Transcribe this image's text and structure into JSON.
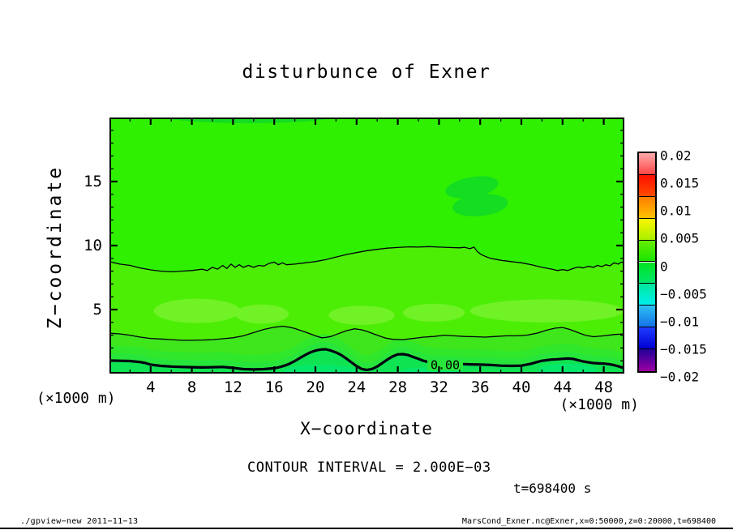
{
  "figure": {
    "title": "disturbunce of Exner",
    "xlabel": "X−coordinate",
    "ylabel": "Z−coordinate",
    "unit_note": "(×1000 m)",
    "contour_note": "CONTOUR INTERVAL = 2.000E−03",
    "time_note": "t=698400 s",
    "footer_left": "./gpview−new  2011−11−13",
    "footer_right": "MarsCond_Exner.nc@Exner,x=0:50000,z=0:20000,t=698400"
  },
  "chart_data": {
    "type": "filled-contour",
    "title": "disturbunce of Exner",
    "xlabel": "X−coordinate",
    "ylabel": "Z−coordinate",
    "x_axis": {
      "range": [
        0,
        50
      ],
      "major_ticks": [
        4,
        8,
        12,
        16,
        20,
        24,
        28,
        32,
        36,
        40,
        44,
        48
      ],
      "minor_step": 2,
      "unit": "(×1000 m)"
    },
    "z_axis": {
      "range": [
        0,
        20
      ],
      "major_ticks": [
        5,
        10,
        15
      ],
      "minor_step": 1,
      "unit": "(×1000 m)"
    },
    "contour_interval": 0.002,
    "time": "t=698400 s",
    "contour_zero_label": "0.00",
    "colorbar": {
      "labels": [
        "0.02",
        "0.015",
        "0.01",
        "0.005",
        "0",
        "−0.005",
        "−0.01",
        "−0.015",
        "−0.02"
      ],
      "range": [
        -0.02,
        0.02
      ],
      "blocks": [
        [
          "#ffaaaa",
          "#ff4646"
        ],
        [
          "#ff0f00",
          "#ff4b00"
        ],
        [
          "#ff7d00",
          "#ffc300"
        ],
        [
          "#fdf500",
          "#a8f000"
        ],
        [
          "#66ee00",
          "#1ae400"
        ],
        [
          "#00e41e",
          "#00e66e"
        ],
        [
          "#00e89b",
          "#00eeee"
        ],
        [
          "#2cc0f2",
          "#1573e8"
        ],
        [
          "#1f3cff",
          "#0000d2"
        ],
        [
          "#22009a",
          "#9b00a0"
        ]
      ]
    },
    "colors": {
      "top_region": "#2ff000",
      "mid_band": "#4dee06",
      "light_patch": "#70f226",
      "band3": "#3fe61c",
      "band4": "#30e72b",
      "band5": "#28e53c",
      "below_zero": "#0fe352",
      "teal_patch": "#05e76b",
      "dark_blob": "#14dd22",
      "line": "#000010"
    },
    "contours": {
      "upper_thin_value": 0.002,
      "upper_thin": [
        [
          0,
          8.75
        ],
        [
          1,
          8.55
        ],
        [
          2,
          8.45
        ],
        [
          3,
          8.25
        ],
        [
          4,
          8.1
        ],
        [
          5,
          8.0
        ],
        [
          6,
          7.95
        ],
        [
          7,
          8.0
        ],
        [
          8,
          8.05
        ],
        [
          9,
          8.15
        ],
        [
          9.5,
          8.05
        ],
        [
          10,
          8.3
        ],
        [
          10.5,
          8.15
        ],
        [
          11,
          8.45
        ],
        [
          11.4,
          8.2
        ],
        [
          11.8,
          8.55
        ],
        [
          12.2,
          8.3
        ],
        [
          12.6,
          8.5
        ],
        [
          13,
          8.3
        ],
        [
          13.5,
          8.45
        ],
        [
          14,
          8.3
        ],
        [
          14.5,
          8.45
        ],
        [
          15,
          8.4
        ],
        [
          15.5,
          8.6
        ],
        [
          16,
          8.7
        ],
        [
          16.4,
          8.5
        ],
        [
          16.8,
          8.65
        ],
        [
          17.2,
          8.5
        ],
        [
          18,
          8.55
        ],
        [
          19,
          8.65
        ],
        [
          20,
          8.75
        ],
        [
          21,
          8.9
        ],
        [
          22,
          9.1
        ],
        [
          23,
          9.3
        ],
        [
          24,
          9.45
        ],
        [
          25,
          9.6
        ],
        [
          26,
          9.7
        ],
        [
          27,
          9.8
        ],
        [
          28,
          9.85
        ],
        [
          29,
          9.9
        ],
        [
          30,
          9.88
        ],
        [
          31,
          9.92
        ],
        [
          32,
          9.88
        ],
        [
          33,
          9.85
        ],
        [
          34,
          9.82
        ],
        [
          34.5,
          9.87
        ],
        [
          35,
          9.75
        ],
        [
          35.4,
          9.88
        ],
        [
          35.7,
          9.55
        ],
        [
          36,
          9.35
        ],
        [
          36.5,
          9.15
        ],
        [
          37,
          9.0
        ],
        [
          38,
          8.85
        ],
        [
          39,
          8.75
        ],
        [
          40,
          8.65
        ],
        [
          41,
          8.5
        ],
        [
          42,
          8.3
        ],
        [
          43,
          8.15
        ],
        [
          43.5,
          8.05
        ],
        [
          44,
          8.12
        ],
        [
          44.5,
          8.05
        ],
        [
          45,
          8.2
        ],
        [
          45.5,
          8.32
        ],
        [
          46,
          8.25
        ],
        [
          46.5,
          8.38
        ],
        [
          47,
          8.3
        ],
        [
          47.4,
          8.45
        ],
        [
          47.8,
          8.35
        ],
        [
          48.2,
          8.5
        ],
        [
          48.6,
          8.42
        ],
        [
          49,
          8.65
        ],
        [
          49.4,
          8.55
        ],
        [
          49.7,
          8.7
        ],
        [
          50,
          8.65
        ]
      ],
      "lower_thin_value": 0.002,
      "lower_thin": [
        [
          0,
          3.15
        ],
        [
          1,
          3.1
        ],
        [
          2,
          3.0
        ],
        [
          3,
          2.85
        ],
        [
          4,
          2.75
        ],
        [
          5,
          2.7
        ],
        [
          6,
          2.65
        ],
        [
          7,
          2.6
        ],
        [
          8,
          2.6
        ],
        [
          9,
          2.62
        ],
        [
          10,
          2.65
        ],
        [
          11,
          2.72
        ],
        [
          12,
          2.8
        ],
        [
          13,
          2.95
        ],
        [
          14,
          3.2
        ],
        [
          15,
          3.45
        ],
        [
          16,
          3.62
        ],
        [
          16.8,
          3.7
        ],
        [
          17.5,
          3.62
        ],
        [
          18,
          3.52
        ],
        [
          19,
          3.25
        ],
        [
          20,
          2.95
        ],
        [
          20.6,
          2.8
        ],
        [
          21,
          2.82
        ],
        [
          21.5,
          2.9
        ],
        [
          22,
          3.05
        ],
        [
          23,
          3.35
        ],
        [
          23.8,
          3.5
        ],
        [
          24.5,
          3.42
        ],
        [
          25,
          3.3
        ],
        [
          26,
          3.0
        ],
        [
          26.8,
          2.78
        ],
        [
          27.5,
          2.68
        ],
        [
          28.5,
          2.65
        ],
        [
          29.5,
          2.75
        ],
        [
          30.5,
          2.85
        ],
        [
          31.5,
          2.9
        ],
        [
          32.5,
          3.0
        ],
        [
          33.5,
          2.95
        ],
        [
          34.5,
          2.9
        ],
        [
          35.5,
          2.88
        ],
        [
          36.5,
          2.85
        ],
        [
          37.5,
          2.9
        ],
        [
          38.5,
          2.95
        ],
        [
          39.5,
          2.95
        ],
        [
          40.5,
          3.0
        ],
        [
          41.5,
          3.15
        ],
        [
          42.5,
          3.4
        ],
        [
          43.3,
          3.55
        ],
        [
          44,
          3.6
        ],
        [
          44.7,
          3.45
        ],
        [
          45.5,
          3.2
        ],
        [
          46.2,
          3.0
        ],
        [
          47,
          2.88
        ],
        [
          48,
          2.95
        ],
        [
          49,
          3.05
        ],
        [
          50,
          3.1
        ]
      ],
      "zero_bold_value": 0.0,
      "zero_bold": [
        [
          0,
          1.02
        ],
        [
          1,
          1.0
        ],
        [
          2,
          0.98
        ],
        [
          3,
          0.9
        ],
        [
          3.5,
          0.82
        ],
        [
          4,
          0.7
        ],
        [
          5,
          0.6
        ],
        [
          6,
          0.55
        ],
        [
          7,
          0.52
        ],
        [
          8,
          0.5
        ],
        [
          9,
          0.48
        ],
        [
          10,
          0.5
        ],
        [
          11,
          0.52
        ],
        [
          12,
          0.45
        ],
        [
          13,
          0.35
        ],
        [
          14,
          0.32
        ],
        [
          15,
          0.35
        ],
        [
          16,
          0.42
        ],
        [
          16.5,
          0.5
        ],
        [
          17,
          0.62
        ],
        [
          17.5,
          0.78
        ],
        [
          18,
          0.98
        ],
        [
          18.5,
          1.22
        ],
        [
          19,
          1.45
        ],
        [
          19.5,
          1.65
        ],
        [
          20,
          1.8
        ],
        [
          20.5,
          1.88
        ],
        [
          21,
          1.9
        ],
        [
          21.5,
          1.8
        ],
        [
          22,
          1.65
        ],
        [
          22.5,
          1.45
        ],
        [
          23,
          1.18
        ],
        [
          23.5,
          0.88
        ],
        [
          24,
          0.58
        ],
        [
          24.5,
          0.36
        ],
        [
          25,
          0.28
        ],
        [
          25.5,
          0.36
        ],
        [
          26,
          0.55
        ],
        [
          26.5,
          0.82
        ],
        [
          27,
          1.1
        ],
        [
          27.5,
          1.35
        ],
        [
          28,
          1.5
        ],
        [
          28.5,
          1.52
        ],
        [
          29,
          1.45
        ],
        [
          29.5,
          1.3
        ],
        [
          30,
          1.15
        ],
        [
          30.5,
          1.0
        ],
        [
          31,
          0.9
        ],
        [
          32,
          0.82
        ],
        [
          33,
          0.78
        ],
        [
          34,
          0.75
        ],
        [
          35,
          0.72
        ],
        [
          36,
          0.7
        ],
        [
          37,
          0.68
        ],
        [
          38,
          0.62
        ],
        [
          39,
          0.6
        ],
        [
          40,
          0.62
        ],
        [
          40.5,
          0.7
        ],
        [
          41,
          0.78
        ],
        [
          41.5,
          0.9
        ],
        [
          42,
          1.0
        ],
        [
          42.5,
          1.05
        ],
        [
          43,
          1.1
        ],
        [
          43.5,
          1.12
        ],
        [
          44,
          1.15
        ],
        [
          44.5,
          1.18
        ],
        [
          45,
          1.15
        ],
        [
          45.5,
          1.05
        ],
        [
          46,
          0.95
        ],
        [
          46.5,
          0.88
        ],
        [
          47,
          0.82
        ],
        [
          47.5,
          0.8
        ],
        [
          48,
          0.78
        ],
        [
          48.5,
          0.74
        ],
        [
          49,
          0.66
        ],
        [
          49.5,
          0.55
        ],
        [
          50,
          0.42
        ]
      ]
    },
    "light_patches": [
      [
        8.5,
        4.9,
        4.2,
        0.95
      ],
      [
        14.8,
        4.65,
        2.6,
        0.75
      ],
      [
        24.5,
        4.55,
        3.2,
        0.75
      ],
      [
        31.5,
        4.75,
        3.0,
        0.7
      ],
      [
        42.5,
        4.9,
        7.5,
        0.9
      ]
    ],
    "teal_patches": [
      [
        20.5,
        0.18,
        3.6,
        0.5
      ],
      [
        31,
        0.08,
        3.0,
        0.4
      ],
      [
        44.5,
        0.28,
        2.8,
        0.5
      ]
    ],
    "dark_blobs": [
      [
        13.5,
        20.35,
        9.5,
        0.8,
        0
      ],
      [
        35.2,
        14.55,
        2.6,
        0.8,
        -10
      ],
      [
        36.0,
        13.15,
        2.7,
        0.85,
        -6
      ]
    ],
    "zero_label_pos": {
      "x": 32.6,
      "z": 0.72
    }
  }
}
